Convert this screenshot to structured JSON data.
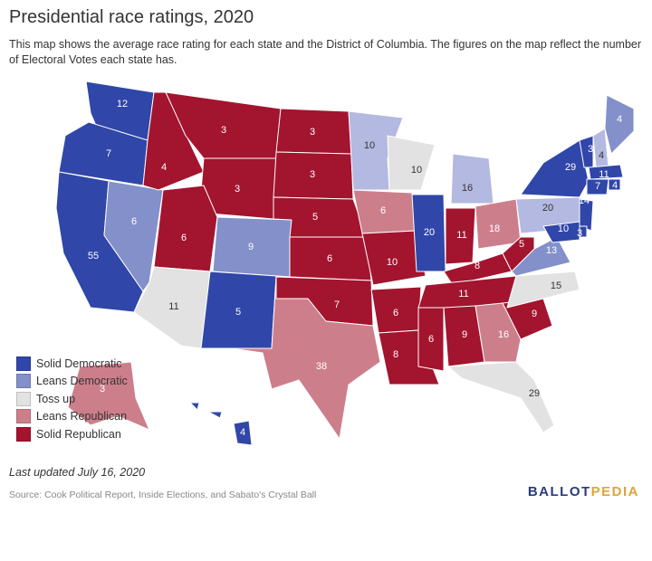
{
  "header": {
    "title": "Presidential race ratings, 2020",
    "subtitle": "This map shows the average race rating for each state and the District of Columbia. The figures on the map reflect the number of Electoral Votes each state has."
  },
  "colors": {
    "solid_dem": "#3046a8",
    "leans_dem": "#8390c9",
    "toss_up": "#e2e2e2",
    "leans_rep": "#cc7f8b",
    "solid_rep": "#a3142e",
    "dem_light": "#b3b9e0"
  },
  "legend": [
    {
      "label": "Solid Democratic",
      "color": "#3046a8"
    },
    {
      "label": "Leans Democratic",
      "color": "#8390c9"
    },
    {
      "label": "Toss up",
      "color": "#e2e2e2"
    },
    {
      "label": "Leans Republican",
      "color": "#cc7f8b"
    },
    {
      "label": "Solid Republican",
      "color": "#a3142e"
    }
  ],
  "states": [
    {
      "id": "WA",
      "ev": "12",
      "rating": "solid_dem"
    },
    {
      "id": "OR",
      "ev": "7",
      "rating": "solid_dem"
    },
    {
      "id": "CA",
      "ev": "55",
      "rating": "solid_dem"
    },
    {
      "id": "NV",
      "ev": "6",
      "rating": "leans_dem"
    },
    {
      "id": "ID",
      "ev": "4",
      "rating": "solid_rep"
    },
    {
      "id": "MT",
      "ev": "3",
      "rating": "solid_rep"
    },
    {
      "id": "WY",
      "ev": "3",
      "rating": "solid_rep"
    },
    {
      "id": "UT",
      "ev": "6",
      "rating": "solid_rep"
    },
    {
      "id": "AZ",
      "ev": "11",
      "rating": "toss_up"
    },
    {
      "id": "CO",
      "ev": "9",
      "rating": "leans_dem"
    },
    {
      "id": "NM",
      "ev": "5",
      "rating": "solid_dem"
    },
    {
      "id": "ND",
      "ev": "3",
      "rating": "solid_rep"
    },
    {
      "id": "SD",
      "ev": "3",
      "rating": "solid_rep"
    },
    {
      "id": "NE",
      "ev": "5",
      "rating": "solid_rep"
    },
    {
      "id": "KS",
      "ev": "6",
      "rating": "solid_rep"
    },
    {
      "id": "OK",
      "ev": "7",
      "rating": "solid_rep"
    },
    {
      "id": "TX",
      "ev": "38",
      "rating": "leans_rep"
    },
    {
      "id": "MN",
      "ev": "10",
      "rating": "dem_light"
    },
    {
      "id": "IA",
      "ev": "6",
      "rating": "leans_rep"
    },
    {
      "id": "MO",
      "ev": "10",
      "rating": "solid_rep"
    },
    {
      "id": "AR",
      "ev": "6",
      "rating": "solid_rep"
    },
    {
      "id": "LA",
      "ev": "8",
      "rating": "solid_rep"
    },
    {
      "id": "WI",
      "ev": "10",
      "rating": "toss_up"
    },
    {
      "id": "IL",
      "ev": "20",
      "rating": "solid_dem"
    },
    {
      "id": "MI",
      "ev": "16",
      "rating": "dem_light"
    },
    {
      "id": "IN",
      "ev": "11",
      "rating": "solid_rep"
    },
    {
      "id": "OH",
      "ev": "18",
      "rating": "leans_rep"
    },
    {
      "id": "KY",
      "ev": "8",
      "rating": "solid_rep"
    },
    {
      "id": "TN",
      "ev": "11",
      "rating": "solid_rep"
    },
    {
      "id": "MS",
      "ev": "6",
      "rating": "solid_rep"
    },
    {
      "id": "AL",
      "ev": "9",
      "rating": "solid_rep"
    },
    {
      "id": "GA",
      "ev": "16",
      "rating": "leans_rep"
    },
    {
      "id": "FL",
      "ev": "29",
      "rating": "toss_up"
    },
    {
      "id": "SC",
      "ev": "9",
      "rating": "solid_rep"
    },
    {
      "id": "NC",
      "ev": "15",
      "rating": "toss_up"
    },
    {
      "id": "VA",
      "ev": "13",
      "rating": "leans_dem"
    },
    {
      "id": "WV",
      "ev": "5",
      "rating": "solid_rep"
    },
    {
      "id": "PA",
      "ev": "20",
      "rating": "dem_light"
    },
    {
      "id": "NY",
      "ev": "29",
      "rating": "solid_dem"
    },
    {
      "id": "VT",
      "ev": "3",
      "rating": "solid_dem"
    },
    {
      "id": "NH",
      "ev": "4",
      "rating": "dem_light"
    },
    {
      "id": "ME",
      "ev": "4",
      "rating": "leans_dem"
    },
    {
      "id": "MA",
      "ev": "11",
      "rating": "solid_dem"
    },
    {
      "id": "RI",
      "ev": "4",
      "rating": "solid_dem"
    },
    {
      "id": "CT",
      "ev": "7",
      "rating": "solid_dem"
    },
    {
      "id": "NJ",
      "ev": "14",
      "rating": "solid_dem"
    },
    {
      "id": "DE",
      "ev": "3",
      "rating": "solid_dem"
    },
    {
      "id": "MD",
      "ev": "10",
      "rating": "solid_dem"
    },
    {
      "id": "AK",
      "ev": "3",
      "rating": "leans_rep"
    },
    {
      "id": "HI",
      "ev": "4",
      "rating": "solid_dem"
    }
  ],
  "footer": {
    "updated": "Last updated July 16, 2020",
    "source": "Source: Cook Political Report, Inside Elections, and Sabato's Crystal Ball",
    "logo_ballot": "BALLOT",
    "logo_pedia": "PEDIA"
  }
}
